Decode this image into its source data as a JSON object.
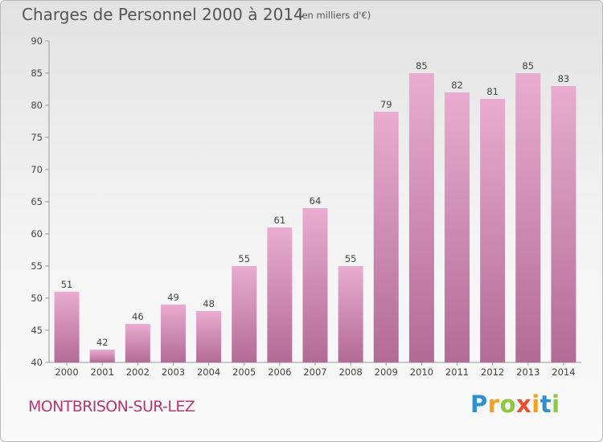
{
  "title": "Charges de Personnel 2000 à 2014",
  "unit_note": "(en milliers d'€)",
  "commune": "MONTBRISON-SUR-LEZ",
  "logo": {
    "text": "Proxiti",
    "letters": [
      "P",
      "r",
      "o",
      "x",
      "i",
      "t",
      "i"
    ],
    "colors": [
      "#2f8fd0",
      "#f5a01e",
      "#8cc83c",
      "#e94f2f",
      "#f5a01e",
      "#2f8fd0",
      "#8cc83c"
    ]
  },
  "colors": {
    "bar_top": "#e9acd0",
    "bar_bottom": "#b26b97",
    "accent": "#b23a72",
    "text": "#555555"
  },
  "chart_data": {
    "type": "bar",
    "categories": [
      "2000",
      "2001",
      "2002",
      "2003",
      "2004",
      "2005",
      "2006",
      "2007",
      "2008",
      "2009",
      "2010",
      "2011",
      "2012",
      "2013",
      "2014"
    ],
    "values": [
      51,
      42,
      46,
      49,
      48,
      55,
      61,
      64,
      55,
      79,
      85,
      82,
      81,
      85,
      83
    ],
    "ylim": [
      40,
      90
    ],
    "yticks": [
      40,
      45,
      50,
      55,
      60,
      65,
      70,
      75,
      80,
      85,
      90
    ],
    "grid": false,
    "data_labels": true
  }
}
